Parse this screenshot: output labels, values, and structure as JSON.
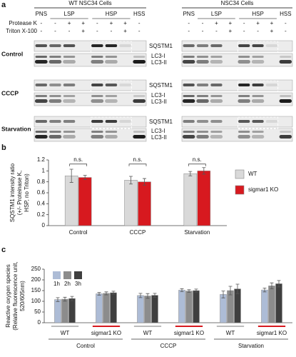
{
  "blot": {
    "label": "a",
    "protease_label": "Protease K",
    "triton_label": "Triton X-100",
    "panels": [
      {
        "title": "WT NSC34 Cells",
        "fractions": [
          "PNS",
          "LSP",
          "HSP",
          "HSS"
        ],
        "protease_k": [
          "-",
          "-",
          "+",
          "+",
          "-",
          "+",
          "+",
          "-"
        ],
        "triton": [
          "-",
          "-",
          "-",
          "+",
          "-",
          "-",
          "+",
          "-"
        ]
      },
      {
        "title": "NSC34 Cells",
        "fractions": [
          "PNS",
          "LSP",
          "HSP",
          "HSS"
        ],
        "protease_k": [
          "-",
          "-",
          "+",
          "+",
          "-",
          "+",
          "+",
          "-"
        ],
        "triton": [
          "-",
          "-",
          "-",
          "+",
          "-",
          "-",
          "+",
          "-"
        ]
      }
    ],
    "rows": [
      {
        "label": "Control",
        "bands": [
          "SQSTM1",
          "LC3-I",
          "LC3-II"
        ]
      },
      {
        "label": "CCCP",
        "bands": [
          "SQSTM1",
          "LC3-I",
          "LC3-II"
        ]
      },
      {
        "label": "Starvation",
        "bands": [
          "SQSTM1",
          "LC3-I",
          "LC3-II"
        ]
      }
    ]
  },
  "chart_data": [
    {
      "type": "bar",
      "panel_label": "b",
      "ylabel": [
        "SQSTM1 intensity ratio",
        "(+/- Proteinase K,",
        "HSP, no Triton)"
      ],
      "categories": [
        "Control",
        "CCCP",
        "Starvation"
      ],
      "series": [
        {
          "name": "WT",
          "color": "#d9d9d9",
          "values": [
            0.91,
            0.83,
            0.95
          ],
          "errors": [
            0.12,
            0.07,
            0.04
          ]
        },
        {
          "name": "sigmar1 KO",
          "color": "#d7191f",
          "values": [
            0.88,
            0.8,
            1.0
          ],
          "errors": [
            0.04,
            0.06,
            0.06
          ]
        }
      ],
      "annotations": [
        "n.s.",
        "n.s.",
        "n.s."
      ],
      "ylim": [
        0,
        1.2
      ],
      "yticks": [
        0,
        0.2,
        0.4,
        0.6,
        0.8,
        1,
        1.2
      ],
      "legend": "right"
    },
    {
      "type": "bar",
      "panel_label": "c",
      "ylabel": [
        "Reactive oxygen species",
        "(Relative fluorescence unit,",
        "520/605nm)"
      ],
      "categories": [
        "WT",
        "sigmar1 KO",
        "WT",
        "sigmar1 KO",
        "WT",
        "sigmar1 KO"
      ],
      "groups": [
        "Control",
        "CCCP",
        "Starvation"
      ],
      "series": [
        {
          "name": "1h",
          "color": "#adbcd6",
          "values": [
            108,
            135,
            127,
            152,
            132,
            153
          ],
          "errors": [
            9,
            6,
            10,
            7,
            16,
            9
          ]
        },
        {
          "name": "2h",
          "color": "#8c8c8c",
          "values": [
            110,
            137,
            125,
            148,
            150,
            172
          ],
          "errors": [
            9,
            7,
            11,
            6,
            20,
            14
          ]
        },
        {
          "name": "3h",
          "color": "#3f3f3f",
          "values": [
            113,
            140,
            128,
            150,
            158,
            182
          ],
          "errors": [
            10,
            7,
            9,
            7,
            22,
            15
          ]
        }
      ],
      "ylim": [
        0,
        250
      ],
      "yticks": [
        0,
        50,
        100,
        150,
        200,
        250
      ],
      "legend": "top-left"
    }
  ]
}
